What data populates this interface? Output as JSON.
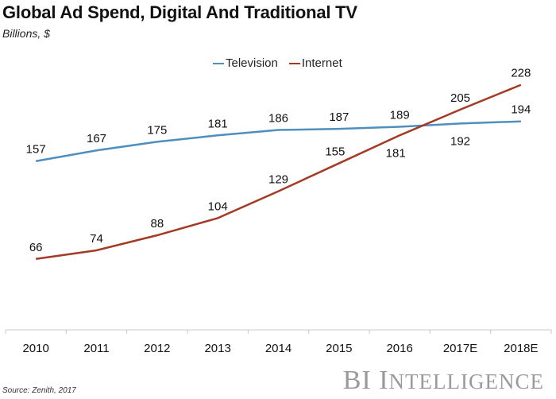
{
  "chart_data": {
    "type": "line",
    "title": "Global Ad Spend, Digital And Traditional TV",
    "subtitle": "Billions, $",
    "xlabel": "",
    "ylabel": "",
    "categories": [
      "2010",
      "2011",
      "2012",
      "2013",
      "2014",
      "2015",
      "2016",
      "2017E",
      "2018E"
    ],
    "series": [
      {
        "name": "Television",
        "color": "#4f8fbf",
        "values": [
          157,
          167,
          175,
          181,
          186,
          187,
          189,
          192,
          194
        ]
      },
      {
        "name": "Internet",
        "color": "#a33a25",
        "values": [
          66,
          74,
          88,
          104,
          129,
          155,
          181,
          205,
          228
        ]
      }
    ],
    "ylim": [
      0,
      240
    ],
    "grid": false,
    "legend_position": "top-center",
    "data_labels": true,
    "source": "Source: Zenith, 2017",
    "brand": {
      "big": "BI",
      "word_first": "I",
      "word_rest": "NTELLIGENCE"
    }
  }
}
